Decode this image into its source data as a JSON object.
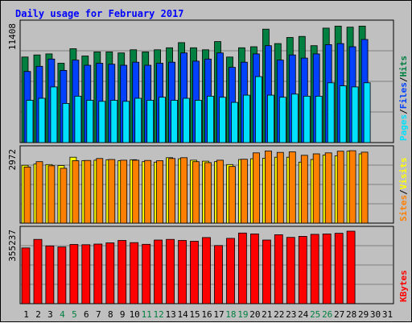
{
  "chart_data": {
    "type": "bar",
    "title": "Daily usage for February 2017",
    "colors": {
      "title": "#0000ff",
      "hits": "#008040",
      "files": "#0040ff",
      "pages": "#00e0ff",
      "visits": "#ffff00",
      "sites": "#ff8000",
      "kbytes": "#ff0000",
      "weekend_label": "#008040",
      "weekday_label": "#000000",
      "panel_bg": "#c0c0c0",
      "gridline": "#808080"
    },
    "days": [
      "1",
      "2",
      "3",
      "4",
      "5",
      "6",
      "7",
      "8",
      "9",
      "10",
      "11",
      "12",
      "13",
      "14",
      "15",
      "16",
      "17",
      "18",
      "19",
      "20",
      "21",
      "22",
      "23",
      "24",
      "25",
      "26",
      "27",
      "28",
      "29",
      "30",
      "31"
    ],
    "weekend_days": [
      "4",
      "5",
      "11",
      "12",
      "18",
      "19",
      "25",
      "26"
    ],
    "panels": [
      {
        "name": "hits-files-pages",
        "max_label": "11408",
        "ylim": [
          0,
          11408
        ],
        "legend": [
          {
            "text": "Hits",
            "color": "#008040"
          },
          {
            "text": "/",
            "color": "#000000"
          },
          {
            "text": "Files",
            "color": "#0040ff"
          },
          {
            "text": "/",
            "color": "#000000"
          },
          {
            "text": "Pages",
            "color": "#00e0ff"
          }
        ],
        "series": [
          {
            "name": "Hits",
            "color": "#008040",
            "values": [
              8300,
              8500,
              8600,
              7700,
              9100,
              8400,
              8800,
              8800,
              8700,
              9000,
              8800,
              9000,
              9200,
              9700,
              9200,
              9000,
              9800,
              8300,
              9200,
              9300,
              11000,
              9600,
              10200,
              10300,
              9400,
              11100,
              11300,
              11200,
              11300,
              0,
              0
            ]
          },
          {
            "name": "Files",
            "color": "#0040ff",
            "values": [
              6900,
              7400,
              8100,
              7000,
              8000,
              7500,
              7700,
              7600,
              7500,
              7800,
              7500,
              7700,
              7800,
              8700,
              7900,
              8100,
              8700,
              7300,
              7800,
              8600,
              9400,
              8000,
              8500,
              8200,
              8600,
              9500,
              9600,
              9300,
              10000,
              0,
              0
            ]
          },
          {
            "name": "Pages",
            "color": "#00e0ff",
            "values": [
              4100,
              4300,
              5400,
              3800,
              4500,
              4100,
              4000,
              4100,
              4000,
              4300,
              4100,
              4400,
              4100,
              4300,
              4100,
              4500,
              4400,
              3900,
              4600,
              6400,
              4600,
              4400,
              4700,
              4500,
              4500,
              5800,
              5500,
              5400,
              5800,
              0,
              0
            ]
          }
        ]
      },
      {
        "name": "visits-sites",
        "max_label": "2972",
        "ylim": [
          0,
          2972
        ],
        "legend": [
          {
            "text": "Visits",
            "color": "#ffff00"
          },
          {
            "text": "/",
            "color": "#000000"
          },
          {
            "text": "Sites",
            "color": "#ff8000"
          }
        ],
        "series": [
          {
            "name": "Visits",
            "color": "#ffff00",
            "values": [
              2370,
              2420,
              2400,
              2360,
              2700,
              2560,
              2580,
              2600,
              2560,
              2600,
              2520,
              2500,
              2680,
              2640,
              2580,
              2540,
              2520,
              2400,
              2610,
              2640,
              2660,
              2700,
              2700,
              2500,
              2610,
              2790,
              2760,
              2950,
              2840,
              0,
              0
            ]
          },
          {
            "name": "Sites",
            "color": "#ff8000",
            "values": [
              2300,
              2520,
              2350,
              2250,
              2560,
              2570,
              2650,
              2610,
              2580,
              2580,
              2570,
              2560,
              2650,
              2680,
              2520,
              2480,
              2580,
              2320,
              2620,
              2880,
              2960,
              2900,
              2920,
              2780,
              2840,
              2880,
              2950,
              2970,
              2910,
              0,
              0
            ]
          }
        ]
      },
      {
        "name": "kbytes",
        "max_label": "355237",
        "ylim": [
          0,
          355237
        ],
        "legend": [
          {
            "text": "KBytes",
            "color": "#ff0000"
          }
        ],
        "series": [
          {
            "name": "KBytes",
            "color": "#ff0000",
            "values": [
              273000,
              315000,
              283000,
              278000,
              290000,
              289000,
              292000,
              298000,
              310000,
              299000,
              291000,
              312000,
              315000,
              310000,
              306000,
              324000,
              285000,
              320000,
              346000,
              342000,
              312000,
              338000,
              325000,
              330000,
              340000,
              342000,
              345000,
              355237,
              0,
              0,
              0
            ]
          }
        ]
      }
    ]
  }
}
